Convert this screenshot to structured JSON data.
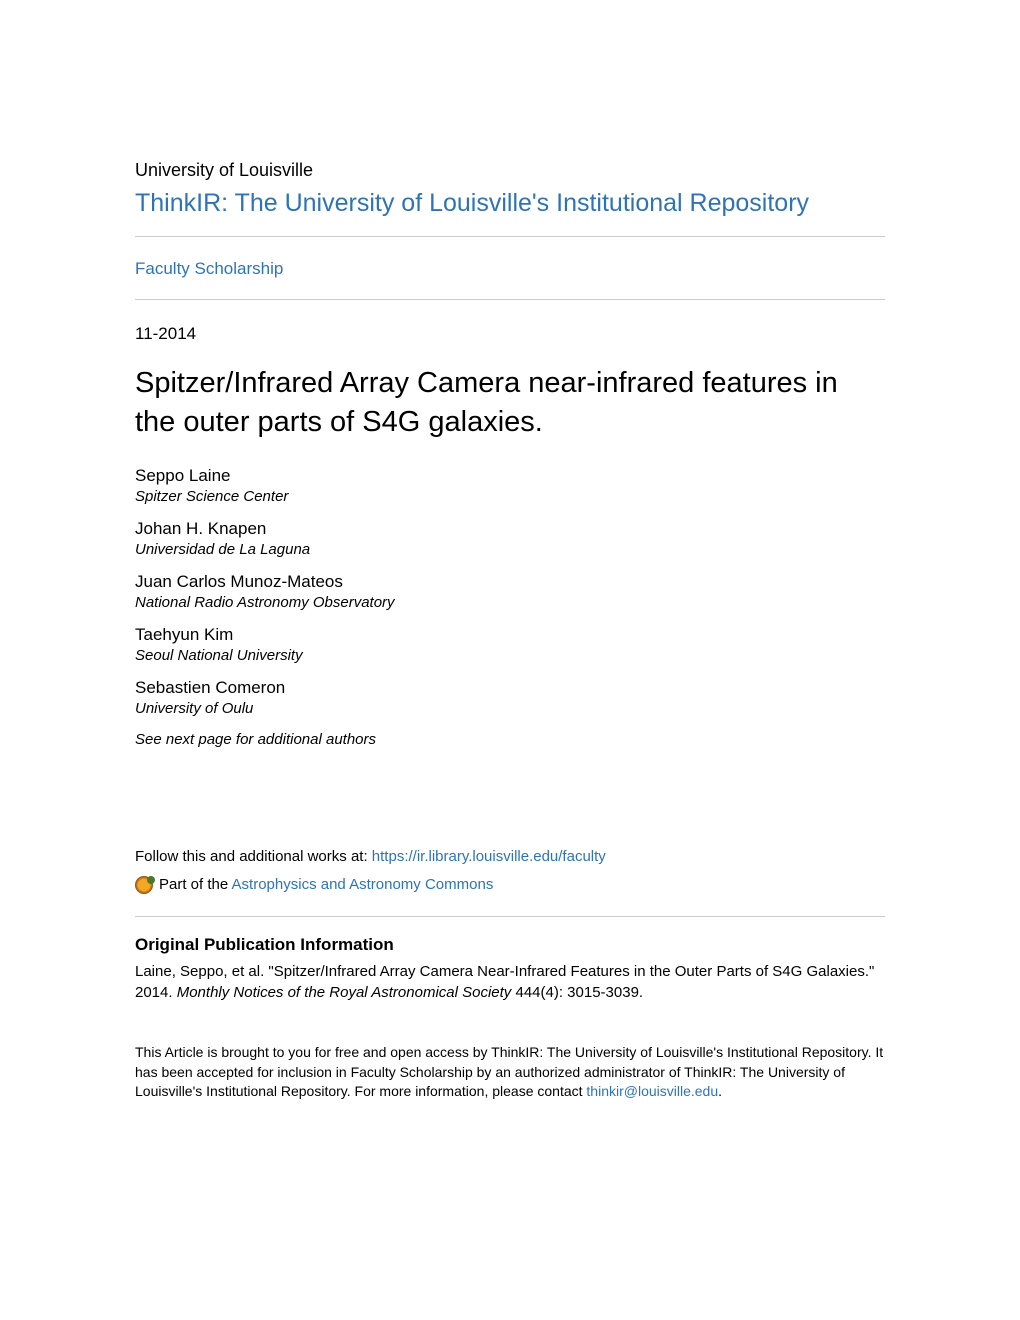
{
  "header": {
    "institution": "University of Louisville",
    "repository_name": "ThinkIR: The University of Louisville's Institutional Repository",
    "faculty_link": "Faculty Scholarship"
  },
  "metadata": {
    "date": "11-2014",
    "title": "Spitzer/Infrared Array Camera near-infrared features in the outer parts of S4G galaxies."
  },
  "authors": [
    {
      "name": "Seppo Laine",
      "affiliation": "Spitzer Science Center"
    },
    {
      "name": "Johan H. Knapen",
      "affiliation": "Universidad de La Laguna"
    },
    {
      "name": "Juan Carlos Munoz-Mateos",
      "affiliation": "National Radio Astronomy Observatory"
    },
    {
      "name": "Taehyun Kim",
      "affiliation": "Seoul National University"
    },
    {
      "name": "Sebastien Comeron",
      "affiliation": "University of Oulu"
    }
  ],
  "see_next": "See next page for additional authors",
  "follow": {
    "prefix": "Follow this and additional works at: ",
    "url": "https://ir.library.louisville.edu/faculty"
  },
  "part_of": {
    "prefix": "Part of the ",
    "commons": "Astrophysics and Astronomy Commons"
  },
  "publication": {
    "heading": "Original Publication Information",
    "citation_part1": "Laine, Seppo, et al. \"Spitzer/Infrared Array Camera Near-Infrared Features in the Outer Parts of S4G Galaxies.\" 2014. ",
    "journal": "Monthly Notices of the Royal Astronomical Society",
    "citation_part2": " 444(4): 3015-3039."
  },
  "access": {
    "text": "This Article is brought to you for free and open access by ThinkIR: The University of Louisville's Institutional Repository. It has been accepted for inclusion in Faculty Scholarship by an authorized administrator of ThinkIR: The University of Louisville's Institutional Repository. For more information, please contact ",
    "email": "thinkir@louisville.edu",
    "suffix": "."
  },
  "colors": {
    "link_blue": "#2e74b5",
    "divider": "#cccccc",
    "text": "#000000",
    "background": "#ffffff"
  }
}
